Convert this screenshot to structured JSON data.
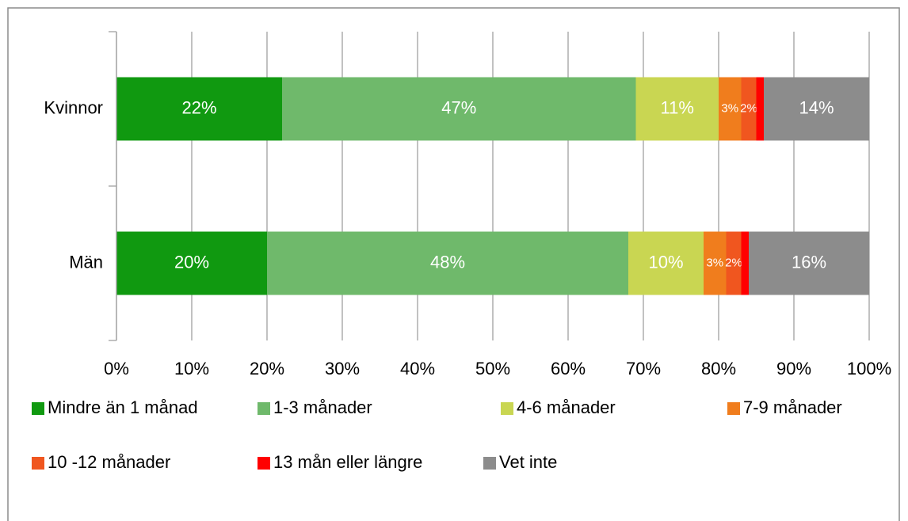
{
  "chart_data": {
    "type": "stacked-bar-horizontal",
    "categories": [
      "Kvinnor",
      "Män"
    ],
    "series": [
      {
        "name": "Mindre än 1 månad",
        "color": "#109910",
        "values": [
          22,
          20
        ],
        "value_labels": [
          "22%",
          "20%"
        ]
      },
      {
        "name": "1-3 månader",
        "color": "#6fb96b",
        "values": [
          47,
          48
        ],
        "value_labels": [
          "47%",
          "48%"
        ]
      },
      {
        "name": "4-6 månader",
        "color": "#c9d652",
        "values": [
          11,
          10
        ],
        "value_labels": [
          "11%",
          "10%"
        ]
      },
      {
        "name": "7-9 månader",
        "color": "#f07d1d",
        "values": [
          3,
          3
        ],
        "value_labels": [
          "3%",
          "3%"
        ]
      },
      {
        "name": "10 -12 månader",
        "color": "#f0561f",
        "values": [
          2,
          2
        ],
        "value_labels": [
          "2%",
          "2%"
        ]
      },
      {
        "name": "13 mån eller längre",
        "color": "#ff0000",
        "values": [
          1,
          1
        ],
        "value_labels": [
          null,
          null
        ]
      },
      {
        "name": "Vet inte",
        "color": "#8c8c8c",
        "values": [
          14,
          16
        ],
        "value_labels": [
          "14%",
          "16%"
        ]
      }
    ],
    "xlim": [
      0,
      100
    ],
    "xticks": [
      {
        "value": 0,
        "label": "0%"
      },
      {
        "value": 10,
        "label": "10%"
      },
      {
        "value": 20,
        "label": "20%"
      },
      {
        "value": 30,
        "label": "30%"
      },
      {
        "value": 40,
        "label": "40%"
      },
      {
        "value": 50,
        "label": "50%"
      },
      {
        "value": 60,
        "label": "60%"
      },
      {
        "value": 70,
        "label": "70%"
      },
      {
        "value": 80,
        "label": "80%"
      },
      {
        "value": 90,
        "label": "90%"
      },
      {
        "value": 100,
        "label": "100%"
      }
    ],
    "grid": true,
    "legend": "bottom"
  }
}
